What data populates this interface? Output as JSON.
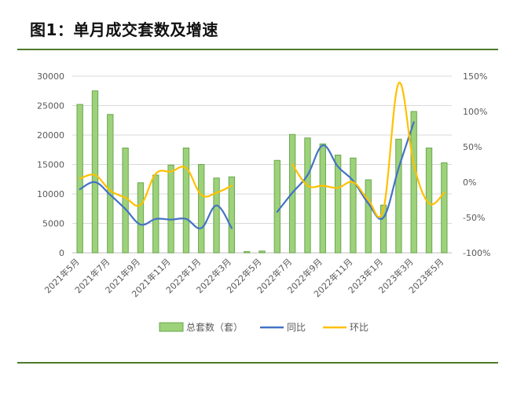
{
  "figure": {
    "title": "图1：单月成交套数及增速"
  },
  "chart_data": {
    "type": "bar",
    "categories": [
      "2021年5月",
      "2021年6月",
      "2021年7月",
      "2021年8月",
      "2021年9月",
      "2021年10月",
      "2021年11月",
      "2021年12月",
      "2022年1月",
      "2022年2月",
      "2022年3月",
      "2022年4月",
      "2022年5月",
      "2022年6月",
      "2022年7月",
      "2022年8月",
      "2022年9月",
      "2022年10月",
      "2022年11月",
      "2022年12月",
      "2023年1月",
      "2023年2月",
      "2023年3月",
      "2023年4月",
      "2023年5月"
    ],
    "tick_labels": [
      "2021年5月",
      "2021年7月",
      "2021年9月",
      "2021年11月",
      "2022年1月",
      "2022年3月",
      "2022年5月",
      "2022年7月",
      "2022年9月",
      "2022年11月",
      "2023年1月",
      "2023年3月",
      "2023年5月"
    ],
    "series": [
      {
        "name": "总套数（套）",
        "type": "bar",
        "axis": "left",
        "color": "#9dd17a",
        "values": [
          25200,
          27500,
          23500,
          17800,
          11900,
          13200,
          14900,
          17800,
          15000,
          12700,
          12900,
          200,
          300,
          15700,
          20100,
          19500,
          18500,
          16600,
          16100,
          12400,
          8100,
          19300,
          24000,
          17800,
          15300
        ]
      },
      {
        "name": "同比",
        "type": "line",
        "axis": "right",
        "color": "#4472c4",
        "values": [
          -10,
          0,
          -18,
          -38,
          -60,
          -52,
          -53,
          -52,
          -65,
          -33,
          -65,
          null,
          null,
          -42,
          -15,
          10,
          52,
          22,
          2,
          -30,
          -50,
          20,
          85,
          null,
          null
        ]
      },
      {
        "name": "环比",
        "type": "line",
        "axis": "right",
        "color": "#ffc000",
        "values": [
          5,
          10,
          -12,
          -22,
          -32,
          12,
          15,
          20,
          -18,
          -15,
          -5,
          null,
          null,
          null,
          25,
          -5,
          -5,
          -8,
          0,
          -25,
          -38,
          140,
          25,
          -30,
          -15
        ]
      }
    ],
    "y_left": {
      "min": 0,
      "max": 30000,
      "ticks": [
        0,
        5000,
        10000,
        15000,
        20000,
        25000,
        30000
      ]
    },
    "y_right": {
      "min": -100,
      "max": 150,
      "ticks": [
        "-100%",
        "-50%",
        "0%",
        "50%",
        "100%",
        "150%"
      ]
    },
    "grid": true,
    "legend_position": "bottom"
  }
}
